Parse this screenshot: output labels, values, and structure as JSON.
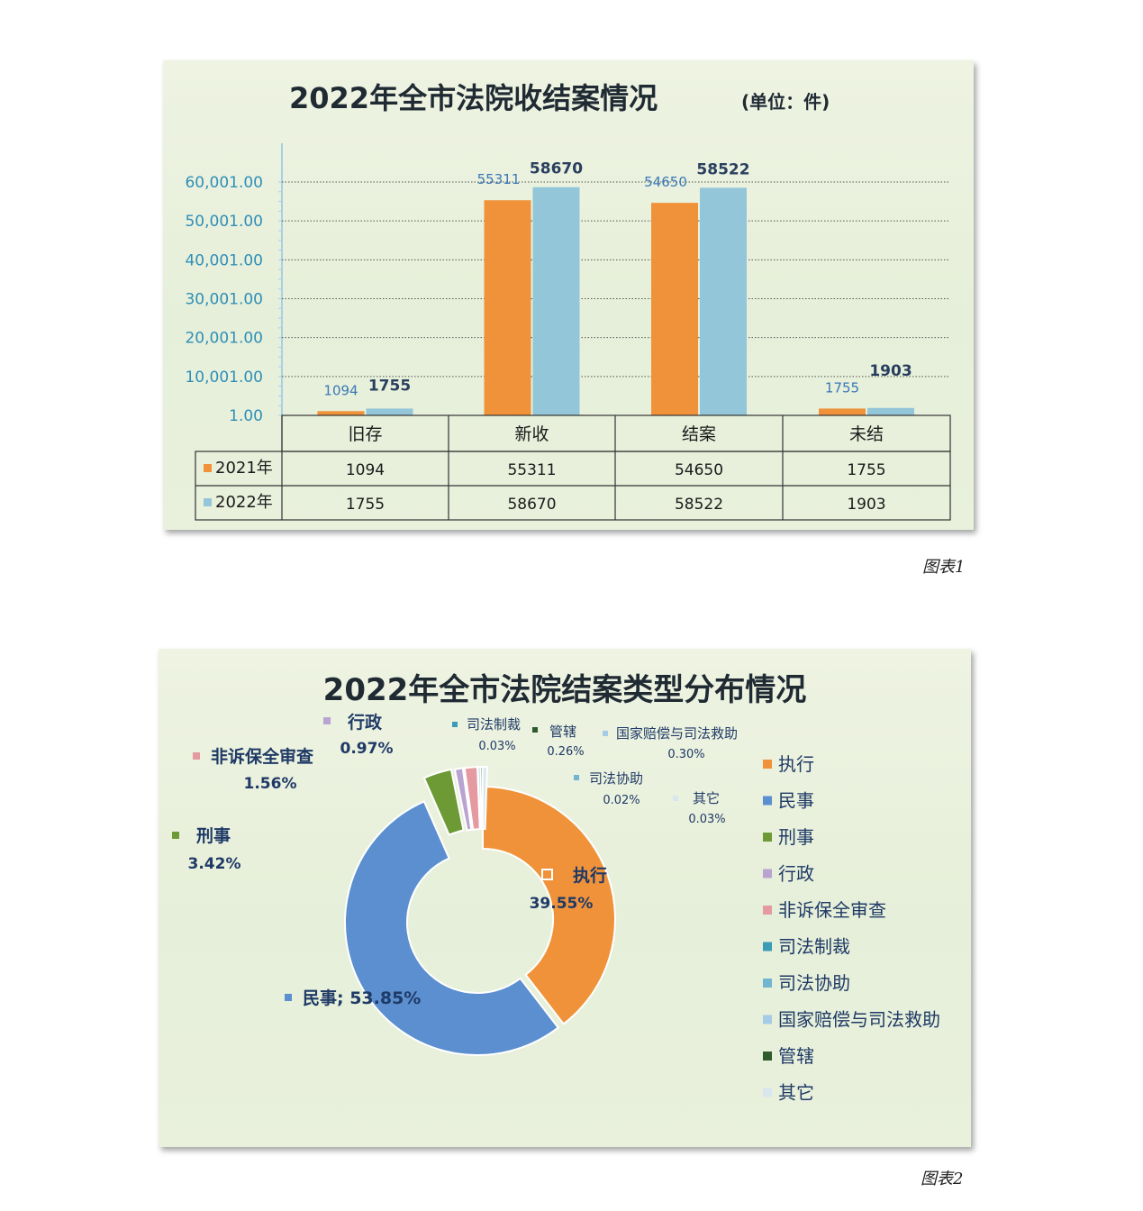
{
  "chart_data": [
    {
      "type": "bar",
      "title": "2022年全市法院收结案情况",
      "unit": "(单位：件)",
      "categories": [
        "旧存",
        "新收",
        "结案",
        "未结"
      ],
      "series": [
        {
          "name": "2021年",
          "values": [
            1094,
            55311,
            54650,
            1755
          ],
          "color": "#f0923a"
        },
        {
          "name": "2022年",
          "values": [
            1755,
            58670,
            58522,
            1903
          ],
          "color": "#93c6d9"
        }
      ],
      "yticks": [
        "1.00",
        "10,001.00",
        "20,001.00",
        "30,001.00",
        "40,001.00",
        "50,001.00",
        "60,001.00"
      ],
      "ylim": [
        1,
        60001
      ],
      "grid": true,
      "legend": "data-table"
    },
    {
      "type": "pie",
      "title": "2022年全市法院结案类型分布情况",
      "slices": [
        {
          "name": "执行",
          "value": 39.55,
          "label": "39.55%",
          "color": "#f0923a"
        },
        {
          "name": "民事",
          "value": 53.85,
          "label": "53.85%",
          "color": "#5b8fd0"
        },
        {
          "name": "刑事",
          "value": 3.42,
          "label": "3.42%",
          "color": "#6e9a36"
        },
        {
          "name": "行政",
          "value": 0.97,
          "label": "0.97%",
          "color": "#b9a3d1"
        },
        {
          "name": "非诉保全审查",
          "value": 1.56,
          "label": "1.56%",
          "color": "#e49aa0"
        },
        {
          "name": "司法制裁",
          "value": 0.03,
          "label": "0.03%",
          "color": "#3c9bb7"
        },
        {
          "name": "司法协助",
          "value": 0.02,
          "label": "0.02%",
          "color": "#72b5d0"
        },
        {
          "name": "国家赔偿与司法救助",
          "value": 0.3,
          "label": "0.30%",
          "color": "#a5cbe6"
        },
        {
          "name": "管辖",
          "value": 0.26,
          "label": "0.26%",
          "color": "#2f5a2c"
        },
        {
          "name": "其它",
          "value": 0.03,
          "label": "0.03%",
          "color": "#d8e6ef"
        }
      ],
      "legend": "right"
    }
  ],
  "captions": [
    "图表1",
    "图表2"
  ]
}
